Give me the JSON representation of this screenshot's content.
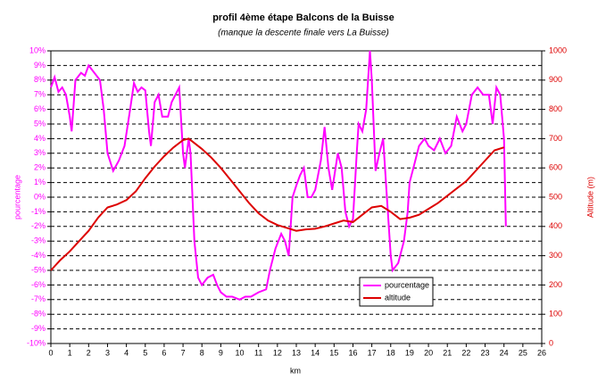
{
  "chart_data": {
    "type": "line",
    "title": "profil 4ème étape Balcons de la Buisse",
    "subtitle": "(manque la descente finale vers La Buisse)",
    "x_label": "km",
    "y_label": "pourcentage",
    "y2_label": "Altitude (m)",
    "xlim": [
      0,
      26
    ],
    "xticks": [
      0,
      1,
      2,
      3,
      4,
      5,
      6,
      7,
      8,
      9,
      10,
      11,
      12,
      13,
      14,
      15,
      16,
      17,
      18,
      19,
      20,
      21,
      22,
      23,
      24,
      25,
      26
    ],
    "ylim": [
      -10,
      10
    ],
    "yticks": [
      {
        "value": -10,
        "label": "-10%"
      },
      {
        "value": -9,
        "label": "-9%"
      },
      {
        "value": -8,
        "label": "-8%"
      },
      {
        "value": -7,
        "label": "-7%"
      },
      {
        "value": -6,
        "label": "-6%"
      },
      {
        "value": -5,
        "label": "-5%"
      },
      {
        "value": -4,
        "label": "-4%"
      },
      {
        "value": -3,
        "label": "-3%"
      },
      {
        "value": -2,
        "label": "-2%"
      },
      {
        "value": -1,
        "label": "-1%"
      },
      {
        "value": 0,
        "label": "0%"
      },
      {
        "value": 1,
        "label": "1%"
      },
      {
        "value": 2,
        "label": "2%"
      },
      {
        "value": 3,
        "label": "3%"
      },
      {
        "value": 4,
        "label": "4%"
      },
      {
        "value": 5,
        "label": "5%"
      },
      {
        "value": 6,
        "label": "6%"
      },
      {
        "value": 7,
        "label": "7%"
      },
      {
        "value": 8,
        "label": "8%"
      },
      {
        "value": 9,
        "label": "9%"
      },
      {
        "value": 10,
        "label": "10%"
      }
    ],
    "y2lim": [
      0,
      1000
    ],
    "y2ticks": [
      0,
      100,
      200,
      300,
      400,
      500,
      600,
      700,
      800,
      900,
      1000
    ],
    "grid": true,
    "legend": "lower right",
    "series": [
      {
        "name": "pourcentage",
        "color": "#ff00ff",
        "x": [
          0,
          0.2,
          0.4,
          0.6,
          0.8,
          1,
          1.1,
          1.3,
          1.6,
          1.8,
          2,
          2.3,
          2.6,
          2.8,
          3,
          3.3,
          3.6,
          3.9,
          4.2,
          4.4,
          4.6,
          4.8,
          5,
          5.2,
          5.3,
          5.5,
          5.7,
          5.9,
          6.2,
          6.4,
          6.6,
          6.8,
          7,
          7.1,
          7.3,
          7.4,
          7.6,
          7.8,
          8,
          8.3,
          8.6,
          8.8,
          9,
          9.3,
          9.6,
          10,
          10.3,
          10.6,
          11,
          11.4,
          11.6,
          11.9,
          12.2,
          12.4,
          12.6,
          12.8,
          13,
          13.2,
          13.4,
          13.6,
          13.8,
          14,
          14.3,
          14.5,
          14.7,
          14.9,
          15.2,
          15.4,
          15.6,
          15.8,
          16,
          16.2,
          16.3,
          16.5,
          16.7,
          16.9,
          17,
          17.2,
          17.4,
          17.6,
          17.8,
          18,
          18.1,
          18.4,
          18.7,
          18.9,
          19,
          19.2,
          19.5,
          19.8,
          20,
          20.3,
          20.6,
          20.9,
          21.2,
          21.5,
          21.8,
          22,
          22.3,
          22.6,
          22.9,
          23.2,
          23.4,
          23.6,
          23.8,
          24,
          24.1
        ],
        "values": [
          7.5,
          8.2,
          7.2,
          7.5,
          7,
          5.5,
          4.5,
          8,
          8.5,
          8.3,
          9,
          8.5,
          8,
          6,
          3,
          1.8,
          2.5,
          3.5,
          6,
          7.8,
          7.2,
          7.5,
          7.3,
          4.5,
          3.5,
          6.5,
          7,
          5.5,
          5.5,
          6.5,
          7,
          7.5,
          3,
          2,
          4,
          3,
          -3,
          -5.5,
          -6,
          -5.5,
          -5.3,
          -6,
          -6.5,
          -6.8,
          -6.8,
          -7,
          -6.8,
          -6.8,
          -6.5,
          -6.3,
          -5,
          -3.5,
          -2.5,
          -3,
          -4,
          0,
          0.8,
          1.5,
          2,
          0,
          0,
          0.5,
          2.5,
          4.8,
          2,
          0.5,
          3,
          2,
          -1,
          -2,
          -1.5,
          3,
          5,
          4.5,
          6,
          10,
          8,
          1.8,
          3,
          4,
          0,
          -4,
          -5,
          -4.5,
          -3,
          -1,
          1,
          2,
          3.5,
          4,
          3.5,
          3.2,
          4,
          3,
          3.5,
          5.5,
          4.5,
          5,
          7,
          7.5,
          7,
          7,
          5,
          7.5,
          7,
          4,
          -2
        ]
      },
      {
        "name": "altitude",
        "color": "#dd0000",
        "axis": "y2",
        "x": [
          0,
          0.5,
          1,
          1.5,
          2,
          2.5,
          3,
          3.5,
          4,
          4.5,
          5,
          5.5,
          6,
          6.5,
          7,
          7.3,
          7.5,
          8,
          8.5,
          9,
          9.5,
          10,
          10.5,
          11,
          11.5,
          12,
          12.5,
          13,
          13.5,
          14,
          14.5,
          15,
          15.5,
          16,
          16.5,
          17,
          17.5,
          18,
          18.5,
          19,
          19.5,
          20,
          20.5,
          21,
          21.5,
          22,
          22.5,
          23,
          23.5,
          24
        ],
        "values": [
          250,
          285,
          315,
          350,
          385,
          430,
          465,
          475,
          490,
          520,
          565,
          605,
          640,
          670,
          695,
          700,
          690,
          665,
          635,
          600,
          560,
          520,
          480,
          445,
          420,
          405,
          395,
          385,
          390,
          392,
          400,
          410,
          420,
          415,
          440,
          465,
          470,
          450,
          425,
          430,
          440,
          460,
          480,
          505,
          530,
          555,
          590,
          625,
          660,
          670
        ]
      }
    ]
  }
}
